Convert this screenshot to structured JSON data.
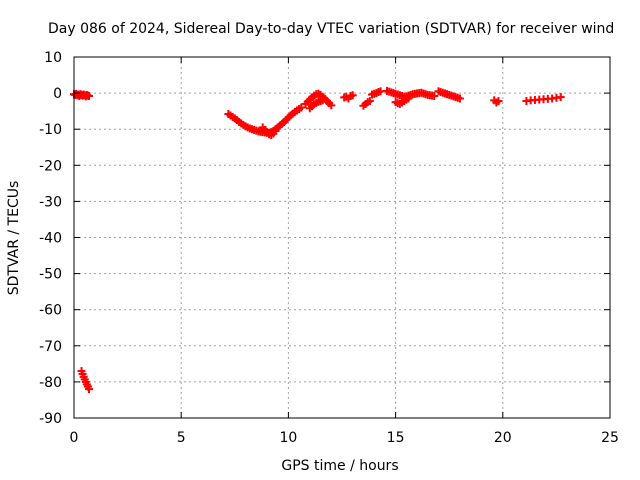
{
  "chart_data": {
    "type": "scatter",
    "title": "Day 086 of 2024, Sidereal Day-to-day VTEC variation (SDTVAR) for receiver wind",
    "xlabel": "GPS time / hours",
    "ylabel": "SDTVAR / TECUs",
    "xlim": [
      0,
      25
    ],
    "ylim": [
      -90,
      10
    ],
    "xticks": [
      0,
      5,
      10,
      15,
      20,
      25
    ],
    "yticks": [
      10,
      0,
      -10,
      -20,
      -30,
      -40,
      -50,
      -60,
      -70,
      -80,
      -90
    ],
    "grid": true,
    "marker": "+",
    "color": "#ff0000",
    "series": [
      {
        "name": "SDTVAR",
        "x": [
          0.0,
          0.05,
          0.1,
          0.15,
          0.2,
          0.25,
          0.3,
          0.35,
          0.4,
          0.45,
          0.5,
          0.55,
          0.6,
          0.65,
          0.7,
          0.35,
          0.4,
          0.45,
          0.5,
          0.55,
          0.6,
          0.65,
          0.7,
          7.2,
          7.3,
          7.4,
          7.5,
          7.6,
          7.7,
          7.8,
          7.9,
          8.0,
          8.1,
          8.2,
          8.3,
          8.4,
          8.5,
          8.6,
          8.7,
          8.8,
          8.9,
          9.0,
          9.1,
          9.2,
          9.3,
          9.4,
          9.5,
          9.6,
          9.7,
          9.8,
          9.9,
          10.0,
          10.1,
          10.2,
          10.3,
          10.4,
          10.5,
          10.6,
          8.8,
          8.9,
          9.0,
          9.1,
          9.2,
          9.3,
          9.4,
          10.8,
          10.9,
          11.0,
          11.1,
          11.2,
          11.3,
          11.4,
          11.5,
          11.6,
          11.7,
          11.8,
          11.9,
          12.0,
          11.0,
          11.1,
          11.2,
          11.3,
          11.4,
          11.5,
          11.6,
          12.6,
          12.7,
          12.8,
          12.9,
          13.0,
          13.5,
          13.6,
          13.7,
          13.8,
          13.9,
          14.0,
          14.1,
          14.2,
          14.3,
          14.6,
          14.7,
          14.8,
          14.9,
          15.0,
          15.1,
          15.2,
          15.3,
          15.4,
          15.5,
          15.6,
          15.7,
          15.8,
          15.9,
          16.0,
          16.1,
          16.2,
          16.3,
          16.4,
          16.5,
          16.6,
          16.7,
          16.8,
          15.0,
          15.1,
          15.2,
          15.3,
          15.4,
          15.5,
          15.6,
          17.0,
          17.1,
          17.2,
          17.3,
          17.4,
          17.5,
          17.6,
          17.7,
          17.8,
          17.9,
          18.0,
          19.6,
          19.7,
          19.8,
          21.1,
          21.3,
          21.5,
          21.7,
          21.9,
          22.1,
          22.3,
          22.5,
          22.7
        ],
        "y": [
          -0.3,
          -0.5,
          -0.2,
          -0.6,
          -0.4,
          -0.8,
          -0.3,
          -0.5,
          -0.7,
          -0.4,
          -0.6,
          -0.9,
          -0.5,
          -0.7,
          -0.8,
          -77.0,
          -77.8,
          -78.6,
          -79.3,
          -80.0,
          -80.7,
          -81.3,
          -82.0,
          -5.8,
          -6.2,
          -6.6,
          -7.0,
          -7.5,
          -8.0,
          -8.4,
          -8.8,
          -9.2,
          -9.5,
          -9.8,
          -10.0,
          -10.2,
          -10.4,
          -10.6,
          -10.7,
          -10.8,
          -10.9,
          -11.0,
          -11.0,
          -10.8,
          -10.5,
          -10.0,
          -9.5,
          -9.0,
          -8.5,
          -8.0,
          -7.4,
          -6.8,
          -6.2,
          -5.7,
          -5.2,
          -4.8,
          -4.4,
          -4.0,
          -9.5,
          -10.2,
          -10.8,
          -11.4,
          -11.6,
          -11.2,
          -10.5,
          -3.0,
          -2.4,
          -1.8,
          -1.2,
          -0.7,
          -0.3,
          -0.2,
          -0.5,
          -1.0,
          -1.6,
          -2.2,
          -2.8,
          -3.4,
          -4.2,
          -3.6,
          -3.1,
          -2.7,
          -2.4,
          -2.2,
          -2.0,
          -1.2,
          -1.0,
          -1.5,
          -0.8,
          -0.6,
          -3.5,
          -3.0,
          -2.5,
          -2.2,
          -0.4,
          -0.2,
          0.0,
          0.3,
          0.5,
          0.6,
          0.4,
          0.2,
          0.0,
          -0.2,
          -0.4,
          -0.6,
          -0.8,
          -1.0,
          -0.9,
          -0.7,
          -0.5,
          -0.3,
          -0.2,
          -0.1,
          0.0,
          0.1,
          -0.1,
          -0.3,
          -0.5,
          -0.6,
          -0.7,
          -0.8,
          -2.5,
          -2.8,
          -3.0,
          -2.6,
          -2.2,
          -1.8,
          -1.5,
          0.5,
          0.3,
          0.1,
          -0.1,
          -0.3,
          -0.5,
          -0.7,
          -0.9,
          -1.1,
          -1.3,
          -1.5,
          -2.0,
          -2.6,
          -2.2,
          -2.2,
          -2.0,
          -1.9,
          -1.8,
          -1.7,
          -1.6,
          -1.5,
          -1.3,
          -1.1
        ]
      }
    ]
  }
}
